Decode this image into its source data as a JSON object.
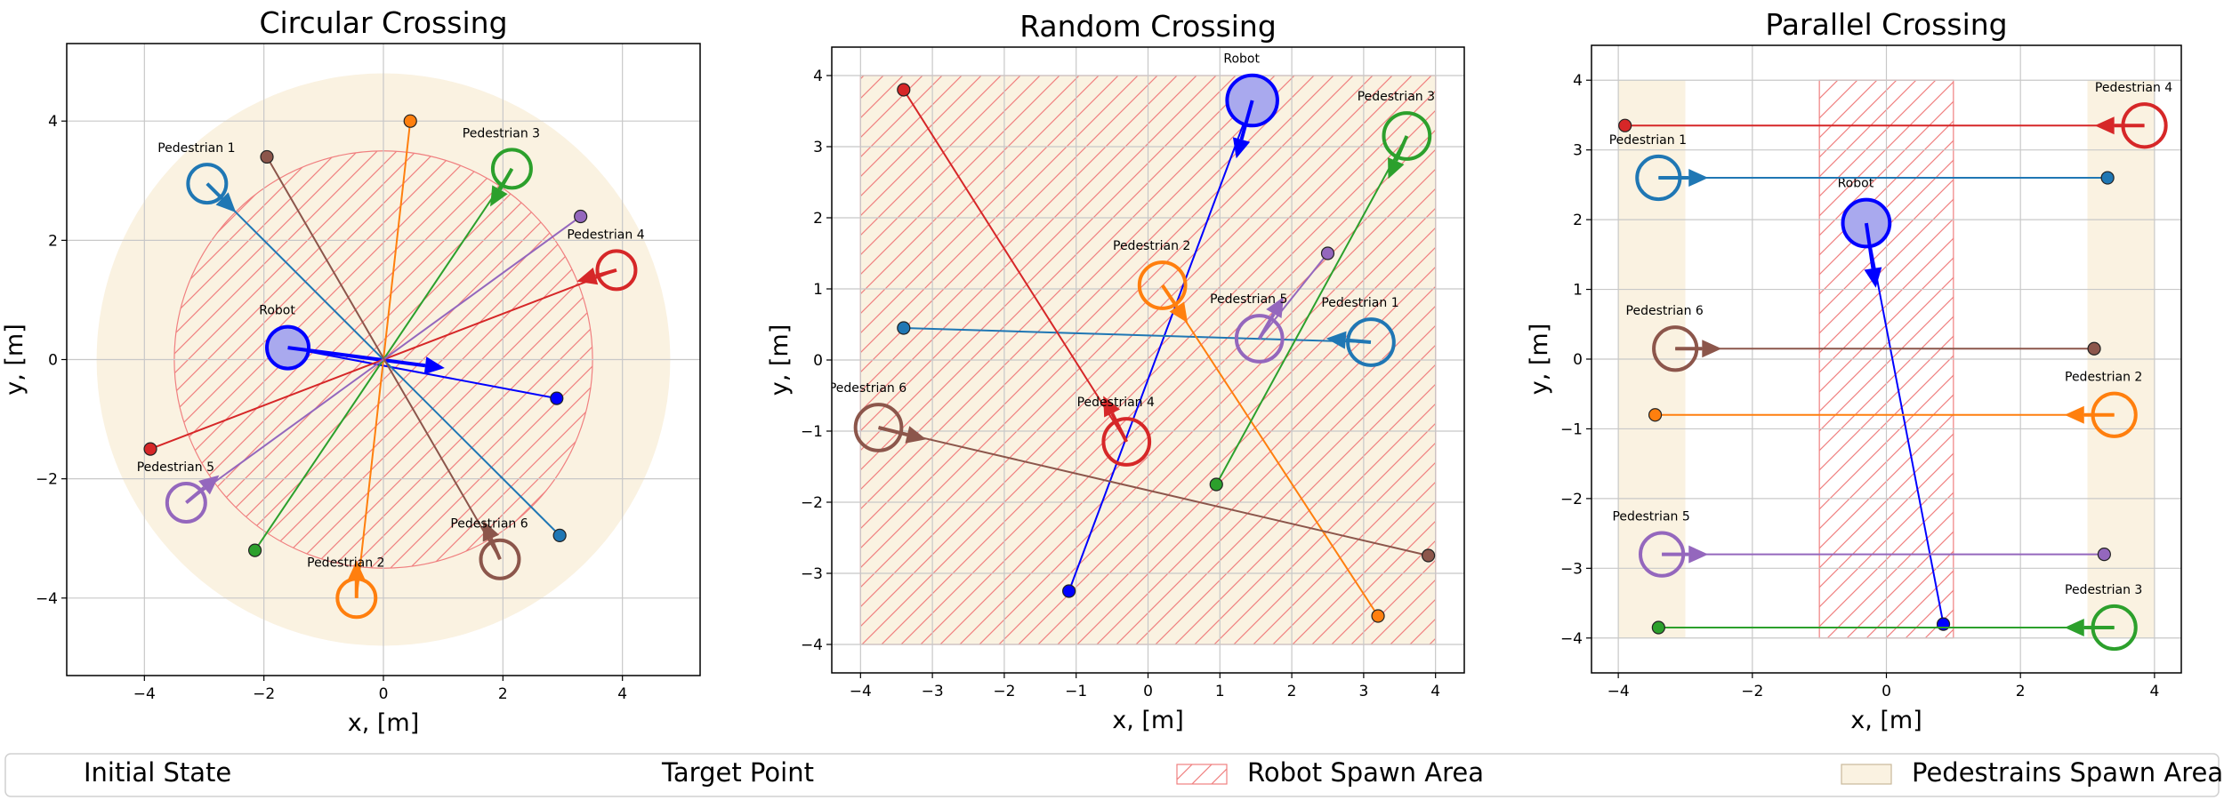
{
  "colors": {
    "robot": "#0000ff",
    "robot_fill": "#a9a9ee",
    "spawn_fill": "#faf2e1",
    "hatch": "#f08080",
    "grid": "#c8c8c8",
    "peds": {
      "1": "#1f77b4",
      "2": "#ff7f0e",
      "3": "#2ca02c",
      "4": "#d62728",
      "5": "#9467bd",
      "6": "#8c564b"
    }
  },
  "chart_data": [
    {
      "type": "scatter",
      "title": "Circular Crossing",
      "xlabel": "x, [m]",
      "ylabel": "y, [m]",
      "xlim": [
        -5.3,
        5.3
      ],
      "ylim": [
        -5.3,
        5.3
      ],
      "xticks": [
        -4,
        -2,
        0,
        2,
        4
      ],
      "yticks": [
        -4,
        -2,
        0,
        2,
        4
      ],
      "grid": true,
      "ped_spawn": {
        "shape": "circle",
        "radius": 4.8
      },
      "robot_spawn": {
        "shape": "circle",
        "radius": 3.5
      },
      "agents": [
        {
          "id": "robot",
          "label": "Robot",
          "start": [
            -1.6,
            0.2
          ],
          "target": [
            2.9,
            -0.65
          ],
          "r": 0.35,
          "head": [
            0.7,
            -0.1
          ]
        },
        {
          "id": "1",
          "label": "Pedestrian 1",
          "start": [
            -2.95,
            2.95
          ],
          "target": [
            2.95,
            -2.95
          ],
          "r": 0.32,
          "head": [
            -2.7,
            2.7
          ]
        },
        {
          "id": "2",
          "label": "Pedestrian 2",
          "start": [
            -0.45,
            -4.0
          ],
          "target": [
            0.45,
            4.0
          ],
          "r": 0.32,
          "head": [
            -0.45,
            -3.7
          ]
        },
        {
          "id": "3",
          "label": "Pedestrian 3",
          "start": [
            2.15,
            3.2
          ],
          "target": [
            -2.15,
            -3.2
          ],
          "r": 0.32,
          "head": [
            1.95,
            2.85
          ]
        },
        {
          "id": "4",
          "label": "Pedestrian 4",
          "start": [
            3.9,
            1.5
          ],
          "target": [
            -3.9,
            -1.5
          ],
          "r": 0.32,
          "head": [
            3.55,
            1.4
          ]
        },
        {
          "id": "5",
          "label": "Pedestrian 5",
          "start": [
            -3.3,
            -2.4
          ],
          "target": [
            3.3,
            2.4
          ],
          "r": 0.32,
          "head": [
            -3.0,
            -2.15
          ]
        },
        {
          "id": "6",
          "label": "Pedestrian 6",
          "start": [
            1.95,
            -3.35
          ],
          "target": [
            -1.95,
            3.4
          ],
          "r": 0.32,
          "head": [
            1.8,
            -3.0
          ]
        }
      ]
    },
    {
      "type": "scatter",
      "title": "Random Crossing",
      "xlabel": "x, [m]",
      "ylabel": "y, [m]",
      "xlim": [
        -4.4,
        4.4
      ],
      "ylim": [
        -4.4,
        4.4
      ],
      "xticks": [
        -4,
        -3,
        -2,
        -1,
        0,
        1,
        2,
        3,
        4
      ],
      "yticks": [
        -4,
        -3,
        -2,
        -1,
        0,
        1,
        2,
        3,
        4
      ],
      "grid": true,
      "ped_spawn": {
        "shape": "rect",
        "x": [
          -4,
          4
        ],
        "y": [
          -4,
          4
        ]
      },
      "robot_spawn": {
        "shape": "rect",
        "x": [
          -4,
          4
        ],
        "y": [
          -4,
          4
        ]
      },
      "agents": [
        {
          "id": "robot",
          "label": "Robot",
          "start": [
            1.45,
            3.65
          ],
          "target": [
            -1.1,
            -3.25
          ],
          "r": 0.35,
          "head": [
            1.3,
            3.1
          ]
        },
        {
          "id": "1",
          "label": "Pedestrian 1",
          "start": [
            3.1,
            0.25
          ],
          "target": [
            -3.4,
            0.45
          ],
          "r": 0.32,
          "head": [
            2.75,
            0.28
          ]
        },
        {
          "id": "2",
          "label": "Pedestrian 2",
          "start": [
            0.2,
            1.05
          ],
          "target": [
            3.2,
            -3.6
          ],
          "r": 0.32,
          "head": [
            0.4,
            0.75
          ]
        },
        {
          "id": "3",
          "label": "Pedestrian 3",
          "start": [
            3.6,
            3.15
          ],
          "target": [
            0.95,
            -1.75
          ],
          "r": 0.32,
          "head": [
            3.45,
            2.8
          ]
        },
        {
          "id": "4",
          "label": "Pedestrian 4",
          "start": [
            -0.3,
            -1.15
          ],
          "target": [
            -3.4,
            3.8
          ],
          "r": 0.32,
          "head": [
            -0.5,
            -0.75
          ]
        },
        {
          "id": "5",
          "label": "Pedestrian 5",
          "start": [
            1.55,
            0.3
          ],
          "target": [
            2.5,
            1.5
          ],
          "r": 0.32,
          "head": [
            1.75,
            0.65
          ]
        },
        {
          "id": "6",
          "label": "Pedestrian 6",
          "start": [
            -3.75,
            -0.95
          ],
          "target": [
            3.9,
            -2.75
          ],
          "r": 0.32,
          "head": [
            -3.35,
            -1.05
          ]
        }
      ]
    },
    {
      "type": "scatter",
      "title": "Parallel Crossing",
      "xlabel": "x, [m]",
      "ylabel": "y, [m]",
      "xlim": [
        -4.4,
        4.4
      ],
      "ylim": [
        -4.5,
        4.5
      ],
      "xticks": [
        -4,
        -2,
        0,
        2,
        4
      ],
      "yticks": [
        -4,
        -3,
        -2,
        -1,
        0,
        1,
        2,
        3,
        4
      ],
      "grid": true,
      "ped_spawn": {
        "shape": "rects",
        "rects": [
          {
            "x": [
              -4,
              -3
            ],
            "y": [
              -4,
              4
            ]
          },
          {
            "x": [
              3,
              4
            ],
            "y": [
              -4,
              4
            ]
          }
        ]
      },
      "robot_spawn": {
        "shape": "rect",
        "x": [
          -1,
          1
        ],
        "y": [
          -4,
          4
        ]
      },
      "agents": [
        {
          "id": "robot",
          "label": "Robot",
          "start": [
            -0.3,
            1.95
          ],
          "target": [
            0.85,
            -3.8
          ],
          "r": 0.35,
          "head": [
            -0.2,
            1.3
          ]
        },
        {
          "id": "1",
          "label": "Pedestrian 1",
          "start": [
            -3.4,
            2.6
          ],
          "target": [
            3.3,
            2.6
          ],
          "r": 0.32,
          "head": [
            -2.95,
            2.6
          ]
        },
        {
          "id": "2",
          "label": "Pedestrian 2",
          "start": [
            3.4,
            -0.8
          ],
          "target": [
            -3.45,
            -0.8
          ],
          "r": 0.32,
          "head": [
            2.95,
            -0.8
          ]
        },
        {
          "id": "3",
          "label": "Pedestrian 3",
          "start": [
            3.4,
            -3.85
          ],
          "target": [
            -3.4,
            -3.85
          ],
          "r": 0.32,
          "head": [
            2.95,
            -3.85
          ]
        },
        {
          "id": "4",
          "label": "Pedestrian 4",
          "start": [
            3.85,
            3.35
          ],
          "target": [
            -3.9,
            3.35
          ],
          "r": 0.32,
          "head": [
            3.4,
            3.35
          ]
        },
        {
          "id": "5",
          "label": "Pedestrian 5",
          "start": [
            -3.35,
            -2.8
          ],
          "target": [
            3.25,
            -2.8
          ],
          "r": 0.32,
          "head": [
            -2.95,
            -2.8
          ]
        },
        {
          "id": "6",
          "label": "Pedestrian 6",
          "start": [
            -3.15,
            0.15
          ],
          "target": [
            3.1,
            0.15
          ],
          "r": 0.32,
          "head": [
            -2.75,
            0.15
          ]
        }
      ]
    }
  ],
  "legend": {
    "placement": "bottom",
    "entries": [
      {
        "key": "initial",
        "label": "Initial State"
      },
      {
        "key": "target",
        "label": "Target Point"
      },
      {
        "key": "robot_spawn",
        "label": "Robot Spawn Area"
      },
      {
        "key": "ped_spawn",
        "label": "Pedestrains Spawn Area"
      }
    ]
  }
}
